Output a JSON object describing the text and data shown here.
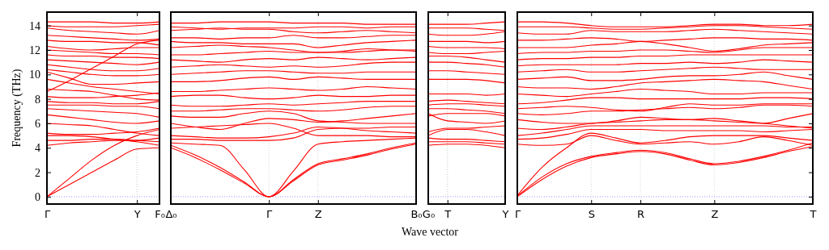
{
  "chart_data": [
    {
      "type": "line",
      "ylabel": "Frequency (THz)",
      "categories": [
        "Γ",
        null,
        null,
        null,
        "Y",
        "F₀"
      ],
      "ylim": [
        -0.6,
        15.1
      ],
      "yticks": [
        0,
        2,
        4,
        6,
        8,
        10,
        12,
        14
      ],
      "line_style": "solid",
      "ref_lines": [
        {
          "axis": "y",
          "value": 0,
          "color": "#7f7fff",
          "line_style": "dotted"
        },
        {
          "axis": "x",
          "value": "Y",
          "color": "#bbbbbb",
          "line_style": "dotted"
        }
      ],
      "series": [
        {
          "color": "#ff0000",
          "values": [
            0,
            1.0,
            2.0,
            3.0,
            3.9,
            4.0
          ]
        },
        {
          "color": "#ff0000",
          "values": [
            0,
            1.5,
            3.0,
            4.2,
            5.0,
            5.5
          ]
        },
        {
          "color": "#ff0000",
          "values": [
            4.2,
            4.4,
            4.5,
            4.6,
            4.6,
            4.8
          ]
        },
        {
          "color": "#ff0000",
          "values": [
            4.6,
            4.6,
            4.7,
            4.7,
            4.6,
            4.5
          ]
        },
        {
          "color": "#ff0000",
          "values": [
            5.0,
            5.0,
            4.9,
            4.7,
            4.5,
            4.2
          ]
        },
        {
          "color": "#ff0000",
          "values": [
            5.2,
            5.1,
            5.1,
            5.2,
            5.3,
            5.6
          ]
        },
        {
          "color": "#ff0000",
          "values": [
            6.0,
            5.9,
            5.8,
            5.5,
            5.2,
            5.0
          ]
        },
        {
          "color": "#ff0000",
          "values": [
            6.7,
            6.5,
            6.3,
            6.1,
            6.0,
            6.2
          ]
        },
        {
          "color": "#ff0000",
          "values": [
            7.2,
            7.1,
            7.0,
            6.9,
            6.8,
            6.5
          ]
        },
        {
          "color": "#ff0000",
          "values": [
            7.5,
            7.5,
            7.5,
            7.4,
            7.4,
            7.2
          ]
        },
        {
          "color": "#ff0000",
          "values": [
            7.8,
            7.7,
            7.7,
            7.6,
            7.6,
            7.8
          ]
        },
        {
          "color": "#ff0000",
          "values": [
            8.2,
            8.1,
            8.1,
            8.2,
            8.3,
            8.5
          ]
        },
        {
          "color": "#ff0000",
          "values": [
            8.8,
            8.7,
            8.6,
            8.3,
            8.0,
            7.9
          ]
        },
        {
          "color": "#ff0000",
          "values": [
            9.6,
            9.3,
            9.0,
            8.8,
            8.6,
            8.4
          ]
        },
        {
          "color": "#ff0000",
          "values": [
            8.6,
            9.5,
            10.5,
            11.5,
            12.5,
            12.8
          ]
        },
        {
          "color": "#ff0000",
          "values": [
            10.2,
            9.7,
            9.2,
            9.2,
            9.3,
            9.4
          ]
        },
        {
          "color": "#ff0000",
          "values": [
            10.4,
            10.2,
            10.0,
            9.9,
            9.9,
            10.0
          ]
        },
        {
          "color": "#ff0000",
          "values": [
            10.8,
            10.6,
            10.4,
            10.3,
            10.3,
            10.5
          ]
        },
        {
          "color": "#ff0000",
          "values": [
            11.2,
            11.1,
            11.0,
            10.9,
            10.8,
            11.0
          ]
        },
        {
          "color": "#ff0000",
          "values": [
            11.6,
            11.5,
            11.5,
            11.4,
            11.4,
            11.3
          ]
        },
        {
          "color": "#ff0000",
          "values": [
            12.0,
            11.9,
            11.8,
            11.7,
            11.7,
            11.6
          ]
        },
        {
          "color": "#ff0000",
          "values": [
            12.3,
            12.1,
            12.0,
            12.1,
            12.2,
            12.2
          ]
        },
        {
          "color": "#ff0000",
          "values": [
            12.8,
            12.7,
            12.7,
            12.6,
            12.6,
            12.4
          ]
        },
        {
          "color": "#ff0000",
          "values": [
            13.2,
            13.1,
            13.0,
            12.9,
            12.8,
            12.9
          ]
        },
        {
          "color": "#ff0000",
          "values": [
            13.8,
            13.6,
            13.5,
            13.4,
            13.3,
            13.6
          ]
        },
        {
          "color": "#ff0000",
          "values": [
            14.0,
            13.9,
            13.9,
            13.9,
            14.0,
            14.1
          ]
        },
        {
          "color": "#ff0000",
          "values": [
            14.3,
            14.3,
            14.3,
            14.2,
            14.2,
            14.3
          ]
        }
      ]
    },
    {
      "type": "line",
      "categories": [
        "Δ₀",
        null,
        null,
        null,
        "Γ",
        null,
        "Z",
        null,
        null,
        null,
        "B₀"
      ],
      "ylim": [
        -0.6,
        15.1
      ],
      "yticks": [
        0,
        2,
        4,
        6,
        8,
        10,
        12,
        14
      ],
      "tick_labels": "x",
      "grid": "x",
      "line_style": "solid",
      "ref_lines": [
        {
          "axis": "y",
          "value": 0,
          "color": "#7f7fff",
          "line_style": "dotted"
        }
      ],
      "series": [
        {
          "color": "#ff0000",
          "values": [
            4.0,
            3.2,
            2.2,
            1.1,
            0,
            1.3,
            2.6,
            3.0,
            3.4,
            3.9,
            4.3
          ]
        },
        {
          "color": "#ff0000",
          "values": [
            4.2,
            3.4,
            2.4,
            1.2,
            0,
            1.4,
            2.7,
            3.1,
            3.5,
            4.0,
            4.4
          ]
        },
        {
          "color": "#ff0000",
          "values": [
            4.4,
            4.3,
            4.2,
            2.2,
            0,
            2.1,
            4.3,
            4.5,
            4.6,
            4.7,
            4.8
          ]
        },
        {
          "color": "#ff0000",
          "values": [
            4.7,
            4.7,
            4.6,
            4.6,
            4.6,
            4.8,
            5.5,
            5.6,
            5.6,
            5.7,
            5.7
          ]
        },
        {
          "color": "#ff0000",
          "values": [
            5.0,
            4.9,
            4.8,
            4.8,
            4.9,
            5.2,
            5.7,
            5.6,
            5.4,
            5.3,
            5.2
          ]
        },
        {
          "color": "#ff0000",
          "values": [
            5.6,
            5.7,
            5.8,
            5.9,
            6.0,
            5.6,
            5.0,
            5.0,
            5.0,
            4.9,
            4.9
          ]
        },
        {
          "color": "#ff0000",
          "values": [
            6.0,
            5.7,
            5.5,
            6.0,
            6.4,
            6.3,
            6.1,
            6.2,
            6.4,
            6.6,
            6.8
          ]
        },
        {
          "color": "#ff0000",
          "values": [
            6.6,
            6.5,
            6.5,
            6.8,
            7.0,
            6.8,
            6.2,
            6.1,
            6.0,
            6.0,
            6.0
          ]
        },
        {
          "color": "#ff0000",
          "values": [
            7.0,
            7.0,
            7.1,
            7.2,
            7.2,
            7.1,
            7.0,
            7.1,
            7.3,
            7.4,
            7.4
          ]
        },
        {
          "color": "#ff0000",
          "values": [
            7.5,
            7.4,
            7.4,
            7.5,
            7.6,
            7.5,
            7.6,
            7.7,
            7.8,
            7.8,
            7.8
          ]
        },
        {
          "color": "#ff0000",
          "values": [
            8.2,
            8.3,
            8.3,
            8.1,
            8.0,
            8.1,
            8.3,
            8.2,
            8.2,
            8.3,
            8.3
          ]
        },
        {
          "color": "#ff0000",
          "values": [
            8.6,
            8.6,
            8.7,
            8.8,
            8.9,
            8.8,
            8.7,
            8.8,
            9.0,
            8.9,
            8.8
          ]
        },
        {
          "color": "#ff0000",
          "values": [
            9.4,
            9.4,
            9.5,
            9.7,
            9.8,
            9.6,
            9.8,
            9.7,
            9.6,
            9.6,
            9.6
          ]
        },
        {
          "color": "#ff0000",
          "values": [
            10.0,
            10.1,
            10.2,
            10.3,
            10.3,
            10.2,
            10.1,
            10.1,
            10.2,
            10.2,
            10.2
          ]
        },
        {
          "color": "#ff0000",
          "values": [
            10.6,
            10.7,
            10.8,
            10.7,
            10.6,
            10.7,
            10.6,
            10.7,
            10.9,
            11.0,
            11.0
          ]
        },
        {
          "color": "#ff0000",
          "values": [
            11.2,
            11.1,
            11.0,
            11.2,
            11.3,
            11.2,
            11.4,
            11.3,
            11.2,
            11.3,
            11.4
          ]
        },
        {
          "color": "#ff0000",
          "values": [
            11.6,
            11.6,
            11.7,
            11.8,
            11.9,
            11.8,
            11.8,
            11.8,
            11.9,
            12.0,
            12.0
          ]
        },
        {
          "color": "#ff0000",
          "values": [
            12.2,
            12.3,
            12.4,
            12.3,
            12.2,
            12.0,
            11.8,
            11.9,
            12.1,
            12.0,
            11.9
          ]
        },
        {
          "color": "#ff0000",
          "values": [
            12.7,
            12.6,
            12.6,
            12.5,
            12.5,
            12.5,
            12.2,
            12.4,
            12.6,
            12.7,
            12.8
          ]
        },
        {
          "color": "#ff0000",
          "values": [
            13.0,
            13.0,
            12.9,
            13.0,
            13.0,
            13.2,
            13.0,
            13.0,
            13.1,
            13.2,
            13.2
          ]
        },
        {
          "color": "#ff0000",
          "values": [
            13.6,
            13.7,
            13.8,
            13.7,
            13.7,
            13.5,
            13.4,
            13.5,
            13.6,
            13.5,
            13.4
          ]
        },
        {
          "color": "#ff0000",
          "values": [
            13.9,
            13.8,
            13.7,
            13.8,
            13.8,
            13.8,
            13.9,
            13.9,
            13.8,
            13.9,
            13.9
          ]
        },
        {
          "color": "#ff0000",
          "values": [
            14.2,
            14.2,
            14.3,
            14.3,
            14.3,
            14.2,
            14.2,
            14.2,
            14.1,
            14.1,
            14.1
          ]
        }
      ]
    },
    {
      "type": "line",
      "xlabel": "Wave vector",
      "categories": [
        "G₀",
        "T",
        null,
        null,
        "Y"
      ],
      "ylim": [
        -0.6,
        15.1
      ],
      "yticks": [
        0,
        2,
        4,
        6,
        8,
        10,
        12,
        14
      ],
      "tick_labels": "x",
      "line_style": "solid",
      "ref_lines": [
        {
          "axis": "y",
          "value": 0,
          "color": "#7f7fff",
          "line_style": "dotted"
        },
        {
          "axis": "x",
          "value": "T",
          "color": "#bbbbbb",
          "line_style": "dotted"
        }
      ],
      "series": [
        {
          "color": "#ff0000",
          "values": [
            4.2,
            4.3,
            4.3,
            4.2,
            4.0
          ]
        },
        {
          "color": "#ff0000",
          "values": [
            4.5,
            4.5,
            4.5,
            4.4,
            4.3
          ]
        },
        {
          "color": "#ff0000",
          "values": [
            4.8,
            4.7,
            4.7,
            4.6,
            4.5
          ]
        },
        {
          "color": "#ff0000",
          "values": [
            5.0,
            5.5,
            5.5,
            5.3,
            5.0
          ]
        },
        {
          "color": "#ff0000",
          "values": [
            5.3,
            5.6,
            5.6,
            5.7,
            5.8
          ]
        },
        {
          "color": "#ff0000",
          "values": [
            6.8,
            6.2,
            6.1,
            6.0,
            6.2
          ]
        },
        {
          "color": "#ff0000",
          "values": [
            6.6,
            6.8,
            6.8,
            6.8,
            6.6
          ]
        },
        {
          "color": "#ff0000",
          "values": [
            7.2,
            7.2,
            7.1,
            7.0,
            6.8
          ]
        },
        {
          "color": "#ff0000",
          "values": [
            7.5,
            7.6,
            7.6,
            7.5,
            7.4
          ]
        },
        {
          "color": "#ff0000",
          "values": [
            7.8,
            7.9,
            7.8,
            7.7,
            7.6
          ]
        },
        {
          "color": "#ff0000",
          "values": [
            8.4,
            8.4,
            8.4,
            8.3,
            8.4
          ]
        },
        {
          "color": "#ff0000",
          "values": [
            9.6,
            9.6,
            9.6,
            9.5,
            9.3
          ]
        },
        {
          "color": "#ff0000",
          "values": [
            10.3,
            10.3,
            10.2,
            10.1,
            10.0
          ]
        },
        {
          "color": "#ff0000",
          "values": [
            11.0,
            11.0,
            10.9,
            10.8,
            10.6
          ]
        },
        {
          "color": "#ff0000",
          "values": [
            11.5,
            11.5,
            11.4,
            11.2,
            11.0
          ]
        },
        {
          "color": "#ff0000",
          "values": [
            11.8,
            11.7,
            11.7,
            11.8,
            11.9
          ]
        },
        {
          "color": "#ff0000",
          "values": [
            12.3,
            12.2,
            12.2,
            12.2,
            12.1
          ]
        },
        {
          "color": "#ff0000",
          "values": [
            12.7,
            12.7,
            12.7,
            12.6,
            12.7
          ]
        },
        {
          "color": "#ff0000",
          "values": [
            13.3,
            13.2,
            13.2,
            13.3,
            13.5
          ]
        },
        {
          "color": "#ff0000",
          "values": [
            13.8,
            13.8,
            13.8,
            13.7,
            13.6
          ]
        },
        {
          "color": "#ff0000",
          "values": [
            14.1,
            14.1,
            14.1,
            14.2,
            14.3
          ]
        }
      ]
    },
    {
      "type": "line",
      "categories": [
        "Γ",
        null,
        null,
        "S",
        null,
        "R",
        null,
        null,
        "Z",
        null,
        null,
        null,
        "T"
      ],
      "ylim": [
        -0.6,
        15.1
      ],
      "yticks": [
        0,
        2,
        4,
        6,
        8,
        10,
        12,
        14
      ],
      "tick_labels": "x",
      "grid": "x",
      "line_style": "solid",
      "ref_lines": [
        {
          "axis": "y",
          "value": 0,
          "color": "#7f7fff",
          "line_style": "dotted"
        }
      ],
      "series": [
        {
          "color": "#ff0000",
          "values": [
            0,
            1.4,
            2.5,
            3.2,
            3.5,
            3.7,
            3.5,
            3.0,
            2.6,
            2.8,
            3.2,
            3.7,
            4.1
          ]
        },
        {
          "color": "#ff0000",
          "values": [
            0.05,
            1.6,
            2.7,
            3.3,
            3.6,
            3.8,
            3.6,
            3.1,
            2.7,
            2.9,
            3.3,
            3.8,
            4.4
          ]
        },
        {
          "color": "#ff0000",
          "values": [
            0.1,
            2.4,
            4.0,
            5.2,
            4.8,
            4.4,
            4.6,
            4.9,
            5.0,
            5.0,
            5.0,
            4.8,
            4.6
          ]
        },
        {
          "color": "#ff0000",
          "values": [
            4.3,
            4.2,
            4.3,
            5.0,
            4.6,
            4.3,
            4.4,
            4.5,
            4.3,
            4.5,
            4.9,
            4.6,
            4.2
          ]
        },
        {
          "color": "#ff0000",
          "values": [
            4.7,
            4.8,
            5.1,
            5.5,
            5.5,
            5.5,
            5.4,
            5.4,
            5.4,
            5.4,
            5.3,
            5.4,
            5.5
          ]
        },
        {
          "color": "#ff0000",
          "values": [
            5.0,
            5.2,
            5.5,
            5.8,
            5.8,
            5.8,
            5.8,
            5.8,
            5.8,
            5.8,
            5.8,
            5.7,
            5.7
          ]
        },
        {
          "color": "#ff0000",
          "values": [
            5.6,
            5.5,
            5.7,
            6.0,
            6.1,
            6.2,
            6.3,
            6.3,
            6.2,
            6.1,
            6.0,
            6.4,
            6.8
          ]
        },
        {
          "color": "#ff0000",
          "values": [
            6.3,
            6.1,
            6.0,
            6.0,
            6.2,
            6.5,
            6.4,
            6.3,
            6.4,
            6.2,
            6.0,
            5.8,
            5.6
          ]
        },
        {
          "color": "#ff0000",
          "values": [
            6.8,
            6.7,
            6.8,
            7.0,
            7.0,
            7.1,
            7.2,
            7.3,
            7.2,
            7.3,
            7.5,
            7.5,
            7.4
          ]
        },
        {
          "color": "#ff0000",
          "values": [
            7.2,
            7.3,
            7.4,
            7.3,
            7.1,
            7.0,
            7.3,
            7.6,
            7.5,
            7.5,
            7.6,
            7.6,
            7.6
          ]
        },
        {
          "color": "#ff0000",
          "values": [
            7.6,
            7.7,
            7.9,
            8.1,
            8.1,
            8.0,
            8.0,
            8.0,
            8.0,
            8.0,
            8.1,
            8.1,
            8.0
          ]
        },
        {
          "color": "#ff0000",
          "values": [
            8.4,
            8.3,
            8.2,
            8.4,
            8.6,
            8.8,
            8.7,
            8.6,
            8.4,
            8.4,
            8.5,
            8.5,
            8.5
          ]
        },
        {
          "color": "#ff0000",
          "values": [
            9.0,
            8.9,
            8.9,
            8.8,
            9.0,
            9.3,
            9.4,
            9.5,
            9.6,
            9.5,
            9.4,
            9.1,
            8.8
          ]
        },
        {
          "color": "#ff0000",
          "values": [
            9.6,
            9.7,
            9.8,
            9.5,
            9.5,
            9.6,
            9.8,
            9.9,
            9.9,
            10.0,
            10.2,
            9.9,
            9.6
          ]
        },
        {
          "color": "#ff0000",
          "values": [
            10.2,
            10.3,
            10.4,
            10.2,
            10.2,
            10.3,
            10.4,
            10.5,
            10.6,
            10.5,
            10.4,
            10.4,
            10.4
          ]
        },
        {
          "color": "#ff0000",
          "values": [
            10.7,
            10.8,
            10.8,
            10.8,
            10.8,
            10.9,
            10.9,
            11.0,
            10.9,
            11.0,
            11.2,
            11.1,
            11.0
          ]
        },
        {
          "color": "#ff0000",
          "values": [
            11.2,
            11.3,
            11.3,
            11.4,
            11.4,
            11.5,
            11.5,
            11.6,
            11.6,
            11.6,
            11.6,
            11.6,
            11.6
          ]
        },
        {
          "color": "#ff0000",
          "values": [
            11.7,
            11.8,
            11.8,
            11.9,
            11.9,
            12.0,
            12.0,
            11.9,
            11.8,
            12.0,
            12.2,
            12.2,
            12.2
          ]
        },
        {
          "color": "#ff0000",
          "values": [
            12.2,
            12.2,
            12.2,
            12.4,
            12.5,
            12.7,
            12.5,
            12.2,
            11.9,
            12.1,
            12.4,
            12.5,
            12.6
          ]
        },
        {
          "color": "#ff0000",
          "values": [
            12.8,
            12.8,
            12.9,
            13.0,
            12.9,
            12.7,
            12.8,
            12.9,
            13.0,
            13.0,
            12.9,
            12.9,
            12.8
          ]
        },
        {
          "color": "#ff0000",
          "values": [
            13.4,
            13.3,
            13.3,
            13.6,
            13.5,
            13.5,
            13.5,
            13.6,
            13.7,
            13.6,
            13.5,
            13.4,
            13.3
          ]
        },
        {
          "color": "#ff0000",
          "values": [
            13.9,
            13.9,
            13.9,
            13.8,
            13.7,
            13.7,
            13.8,
            13.9,
            14.0,
            14.0,
            13.9,
            13.8,
            13.7
          ]
        },
        {
          "color": "#ff0000",
          "values": [
            14.3,
            14.3,
            14.2,
            14.0,
            13.9,
            13.9,
            13.9,
            14.0,
            14.1,
            14.1,
            14.0,
            14.0,
            14.1
          ]
        }
      ]
    }
  ]
}
